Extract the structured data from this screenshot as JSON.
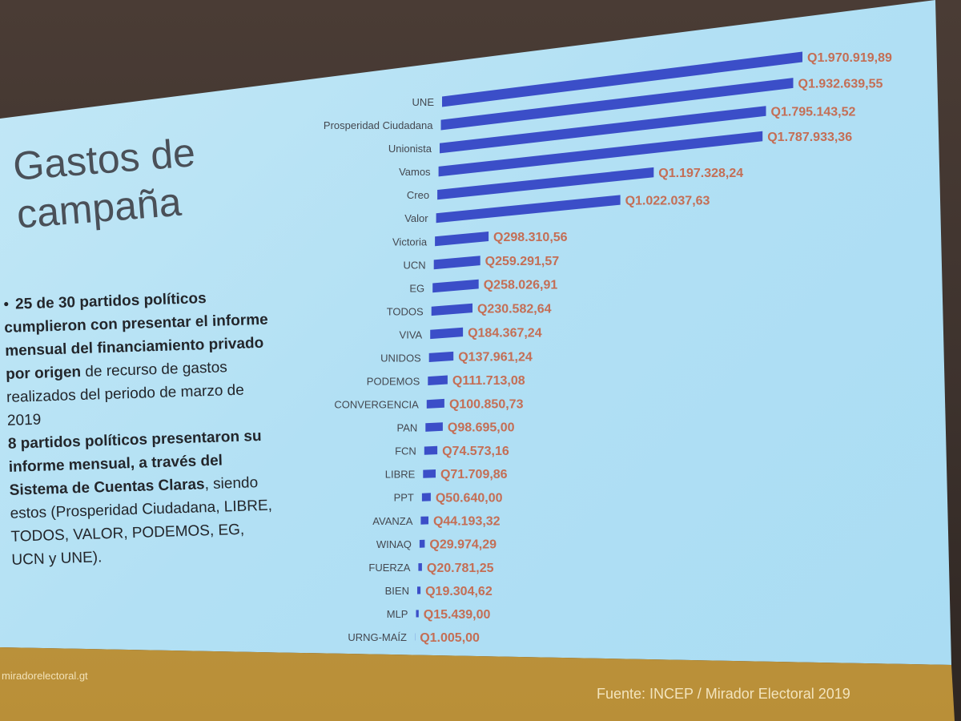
{
  "slide": {
    "title": "Gastos de campaña",
    "bullets": [
      "25 de 30 partidos políticos cumplieron con presentar el informe mensual del financiamiento privado por origen de recurso de gastos realizados del periodo de marzo de 2019",
      "8 partidos políticos presentaron su informe mensual, a través del Sistema de Cuentas Claras, siendo estos (Prosperidad Ciudadana, LIBRE, TODOS, VALOR, PODEMOS, EG, UCN y UNE)."
    ],
    "footer_url": "miradorelectoral.gt",
    "footer_source": "Fuente: INCEP / Mirador Electoral 2019"
  },
  "colors": {
    "bar": "#3b4ec8",
    "value_label": "#c46e55",
    "slide_background": "#b2e0f4",
    "footer_band": "#c39b44"
  },
  "chart_data": {
    "type": "bar",
    "orientation": "horizontal",
    "categories": [
      "UNE",
      "Prosperidad Ciudadana",
      "Unionista",
      "Vamos",
      "Creo",
      "Valor",
      "Victoria",
      "UCN",
      "EG",
      "TODOS",
      "VIVA",
      "UNIDOS",
      "PODEMOS",
      "CONVERGENCIA",
      "PAN",
      "FCN",
      "LIBRE",
      "PPT",
      "AVANZA",
      "WINAQ",
      "FUERZA",
      "BIEN",
      "MLP",
      "URNG-MAÍZ"
    ],
    "values": [
      1970919.89,
      1932639.55,
      1795143.52,
      1787933.36,
      1197328.24,
      1022037.63,
      298310.56,
      259291.57,
      258026.91,
      230582.64,
      184367.24,
      137961.24,
      111713.08,
      100850.73,
      98695.0,
      74573.16,
      71709.86,
      50640.0,
      44193.32,
      29974.29,
      20781.25,
      19304.62,
      15439.0,
      1005.0
    ],
    "value_labels": [
      "Q1.970.919,89",
      "Q1.932.639,55",
      "Q1.795.143,52",
      "Q1.787.933,36",
      "Q1.197.328,24",
      "Q1.022.037,63",
      "Q298.310,56",
      "Q259.291,57",
      "Q258.026,91",
      "Q230.582,64",
      "Q184.367,24",
      "Q137.961,24",
      "Q111.713,08",
      "Q100.850,73",
      "Q98.695,00",
      "Q74.573,16",
      "Q71.709,86",
      "Q50.640,00",
      "Q44.193,32",
      "Q29.974,29",
      "Q20.781,25",
      "Q19.304,62",
      "Q15.439,00",
      "Q1.005,00"
    ],
    "title": "",
    "xlabel": "",
    "ylabel": "",
    "grid": false,
    "legend": "none"
  }
}
